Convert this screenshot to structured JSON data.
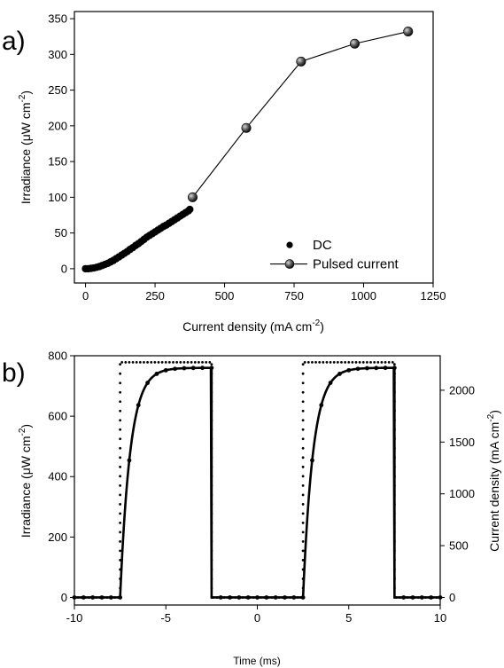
{
  "chart_data": [
    {
      "panel": "a)",
      "type": "scatter",
      "xlabel": "Current density (mA cm⁻²)",
      "ylabel": "Irradiance (μW cm⁻²)",
      "xlim": [
        -40,
        1250
      ],
      "ylim": [
        -20,
        360
      ],
      "xticks": [
        0,
        250,
        500,
        750,
        1000,
        1250
      ],
      "yticks": [
        0,
        50,
        100,
        150,
        200,
        250,
        300,
        350
      ],
      "legend_position": "bottom-right",
      "series": [
        {
          "name": "DC",
          "marker": "dot",
          "x": [
            0,
            10,
            20,
            30,
            40,
            50,
            60,
            70,
            80,
            90,
            100,
            110,
            120,
            130,
            140,
            150,
            160,
            170,
            180,
            190,
            200,
            210,
            220,
            230,
            240,
            250,
            260,
            270,
            280,
            290,
            300,
            310,
            320,
            330,
            340,
            350,
            360,
            370,
            375
          ],
          "y": [
            0,
            0,
            0.5,
            1,
            2,
            3,
            4.5,
            6,
            7.5,
            9.5,
            11.5,
            14,
            16.5,
            19,
            21.5,
            24,
            27,
            29.5,
            32.5,
            35,
            38,
            41,
            44,
            46.5,
            49,
            51.5,
            54,
            56.5,
            59,
            61,
            63.5,
            66,
            68.5,
            71,
            73.5,
            76,
            78.5,
            81,
            83
          ]
        },
        {
          "name": "Pulsed current",
          "marker": "sphere-line",
          "x": [
            385,
            578,
            775,
            968,
            1160
          ],
          "y": [
            100,
            197,
            290,
            315,
            332
          ]
        }
      ]
    },
    {
      "panel": "b)",
      "type": "line",
      "xlabel": "Time (ms)",
      "ylabel": "Irradiance (μW cm⁻²)",
      "y2label": "Current density (mA cm⁻²)",
      "xlim": [
        -10,
        10
      ],
      "ylim": [
        -25,
        800
      ],
      "y2lim": [
        -73,
        2333
      ],
      "xticks": [
        -10,
        -5,
        0,
        5,
        10
      ],
      "yticks": [
        0,
        200,
        400,
        600,
        800
      ],
      "y2ticks": [
        0,
        500,
        1000,
        1500,
        2000
      ],
      "series": [
        {
          "name": "Irradiance",
          "axis": "left",
          "style": "solid",
          "pulse_on": [
            [
              -7.5,
              -2.5
            ],
            [
              2.5,
              7.5
            ]
          ],
          "off_level": 0,
          "plateau": 760,
          "rise_time_constant_ms": 0.55
        },
        {
          "name": "Current density",
          "axis": "right",
          "style": "dotted",
          "pulse_on": [
            [
              -7.5,
              -2.5
            ],
            [
              2.5,
              7.5
            ]
          ],
          "off_level": 0,
          "on_level": 2270
        }
      ]
    }
  ],
  "panels": {
    "a": {
      "letter": "a)",
      "xlabel_main": "Current density (mA cm",
      "xlabel_sup": "-2",
      "xlabel_tail": ")",
      "ylabel_main": "Irradiance (μW cm",
      "ylabel_sup": "-2",
      "ylabel_tail": ")",
      "legend_dc": "DC",
      "legend_pulsed": "Pulsed current"
    },
    "b": {
      "letter": "b)",
      "xlabel": "Time (ms)",
      "ylabel_main": "Irradiance (μW cm",
      "ylabel_sup": "-2",
      "ylabel_tail": ")",
      "y2label_main": "Current density (mA cm",
      "y2label_sup": "-2",
      "y2label_tail": ")"
    }
  },
  "colors": {
    "ink": "#000000",
    "sphere_highlight": "#d8d8d8",
    "sphere_mid": "#6f6f6f",
    "sphere_dark": "#0c0c0c"
  }
}
